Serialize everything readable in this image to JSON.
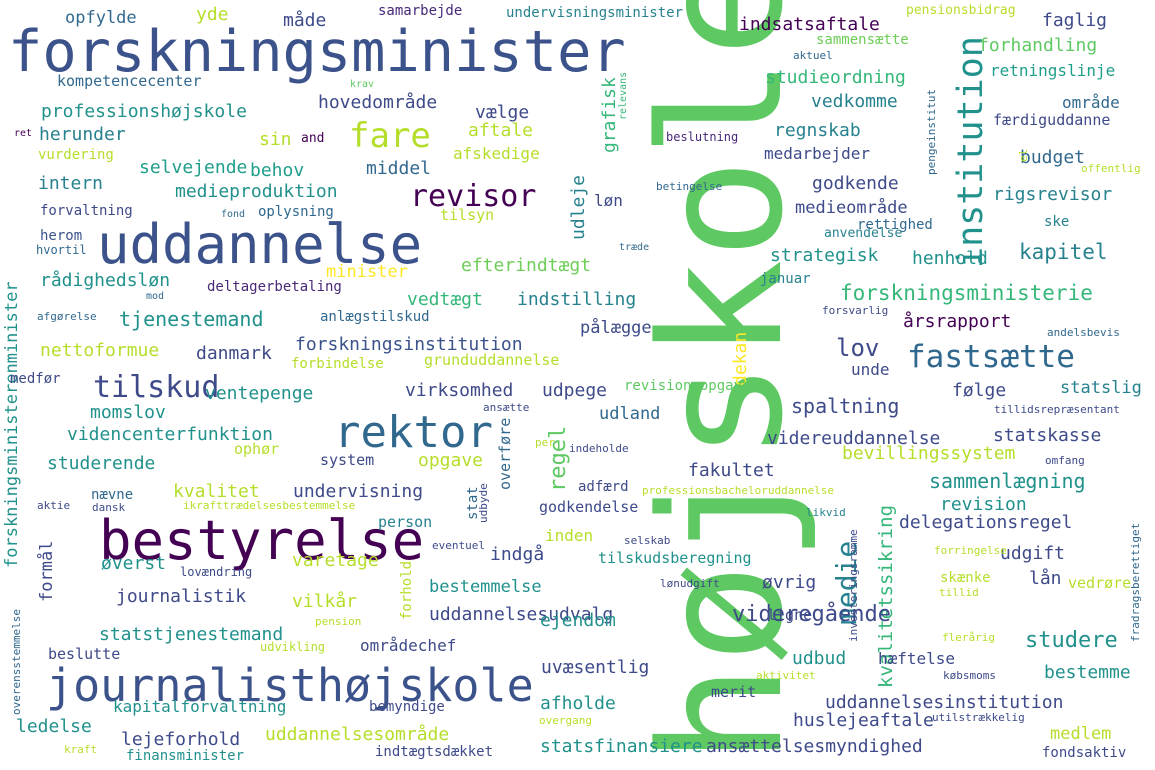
{
  "words": [
    {
      "text": "højskole",
      "color": "#5ec962"
    },
    {
      "text": "forskningsminister",
      "color": "#3b528b"
    },
    {
      "text": "uddannelse",
      "color": "#3b528b"
    },
    {
      "text": "bestyrelse",
      "color": "#440154"
    },
    {
      "text": "journalisthøjskole",
      "color": "#3b528b"
    },
    {
      "text": "rektor",
      "color": "#31688e"
    },
    {
      "text": "institution",
      "color": "#21918c"
    },
    {
      "text": "fare",
      "color": "#b5de2b"
    },
    {
      "text": "revisor",
      "color": "#440154"
    },
    {
      "text": "tilskud",
      "color": "#3e4a89"
    },
    {
      "text": "fastsætte",
      "color": "#31688e"
    },
    {
      "text": "forskningsministerenminister",
      "color": "#21918c"
    },
    {
      "text": "medie",
      "color": "#26828e"
    },
    {
      "text": "kvalitetssikring",
      "color": "#35b779"
    },
    {
      "text": "regel",
      "color": "#5ec962"
    },
    {
      "text": "opfylde",
      "color": "#31688e"
    },
    {
      "text": "yde",
      "color": "#b5de2b"
    },
    {
      "text": "måde",
      "color": "#3e4a89"
    },
    {
      "text": "samarbejde",
      "color": "#482878"
    },
    {
      "text": "undervisningsminister",
      "color": "#26828e"
    },
    {
      "text": "pensionsbidrag",
      "color": "#b5de2b"
    },
    {
      "text": "indsatsaftale",
      "color": "#440154"
    },
    {
      "text": "faglig",
      "color": "#3e4a89"
    },
    {
      "text": "sammensætte",
      "color": "#6ece58"
    },
    {
      "text": "aktuel",
      "color": "#31688e"
    },
    {
      "text": "forhandling",
      "color": "#5ec962"
    },
    {
      "text": "kompetencecenter",
      "color": "#31688e"
    },
    {
      "text": "krav",
      "color": "#5ec962"
    },
    {
      "text": "studieordning",
      "color": "#35b779"
    },
    {
      "text": "retningslinje",
      "color": "#1f9e89"
    },
    {
      "text": "relevans",
      "color": "#35b779"
    },
    {
      "text": "pengeinstitut",
      "color": "#31688e"
    },
    {
      "text": "professionshøjskole",
      "color": "#21918c"
    },
    {
      "text": "hovedområde",
      "color": "#3e4a89"
    },
    {
      "text": "vælge",
      "color": "#3e4a89"
    },
    {
      "text": "vedkomme",
      "color": "#26828e"
    },
    {
      "text": "område",
      "color": "#31688e"
    },
    {
      "text": "ret",
      "color": "#440154"
    },
    {
      "text": "herunder",
      "color": "#26828e"
    },
    {
      "text": "sin",
      "color": "#b5de2b"
    },
    {
      "text": "and",
      "color": "#440154"
    },
    {
      "text": "aftale",
      "color": "#b5de2b"
    },
    {
      "text": "grafisk",
      "color": "#35b779"
    },
    {
      "text": "beslutning",
      "color": "#482878"
    },
    {
      "text": "regnskab",
      "color": "#26828e"
    },
    {
      "text": "færdiguddanne",
      "color": "#3e4a89"
    },
    {
      "text": "vurdering",
      "color": "#b5de2b"
    },
    {
      "text": "afskedige",
      "color": "#b5de2b"
    },
    {
      "text": "medarbejder",
      "color": "#3e4a89"
    },
    {
      "text": "budget",
      "color": "#31688e"
    },
    {
      "text": "el",
      "color": "#b5de2b"
    },
    {
      "text": "offentlig",
      "color": "#b5de2b"
    },
    {
      "text": "selvejende",
      "color": "#1f9e89"
    },
    {
      "text": "behov",
      "color": "#1f9e89"
    },
    {
      "text": "middel",
      "color": "#31688e"
    },
    {
      "text": "intern",
      "color": "#26828e"
    },
    {
      "text": "medieproduktion",
      "color": "#21918c"
    },
    {
      "text": "udleje",
      "color": "#26828e"
    },
    {
      "text": "betingelse",
      "color": "#31688e"
    },
    {
      "text": "godkende",
      "color": "#3e4a89"
    },
    {
      "text": "rigsrevisor",
      "color": "#26828e"
    },
    {
      "text": "forvaltning",
      "color": "#3e4a89"
    },
    {
      "text": "fond",
      "color": "#31688e"
    },
    {
      "text": "oplysning",
      "color": "#31688e"
    },
    {
      "text": "tilsyn",
      "color": "#b5de2b"
    },
    {
      "text": "løn",
      "color": "#3e4a89"
    },
    {
      "text": "medieområde",
      "color": "#3e4a89"
    },
    {
      "text": "ske",
      "color": "#26828e"
    },
    {
      "text": "herom",
      "color": "#3b528b"
    },
    {
      "text": "hvortil",
      "color": "#31688e"
    },
    {
      "text": "anvendelse",
      "color": "#26828e"
    },
    {
      "text": "rettighed",
      "color": "#31688e"
    },
    {
      "text": "træde",
      "color": "#31688e"
    },
    {
      "text": "kapitel",
      "color": "#26828e"
    },
    {
      "text": "minister",
      "color": "#fde725"
    },
    {
      "text": "efterindtægt",
      "color": "#6ece58"
    },
    {
      "text": "strategisk",
      "color": "#21918c"
    },
    {
      "text": "henhold",
      "color": "#21918c"
    },
    {
      "text": "rådighedsløn",
      "color": "#21918c"
    },
    {
      "text": "deltagerbetaling",
      "color": "#482878"
    },
    {
      "text": "januar",
      "color": "#26828e"
    },
    {
      "text": "mod",
      "color": "#31688e"
    },
    {
      "text": "forskningsministerie",
      "color": "#35b779"
    },
    {
      "text": "vedtægt",
      "color": "#35b779"
    },
    {
      "text": "indstilling",
      "color": "#26828e"
    },
    {
      "text": "afgørelse",
      "color": "#31688e"
    },
    {
      "text": "tjenestemand",
      "color": "#21918c"
    },
    {
      "text": "anlægstilskud",
      "color": "#31688e"
    },
    {
      "text": "forsvarlig",
      "color": "#3e4a89"
    },
    {
      "text": "årsrapport",
      "color": "#440154"
    },
    {
      "text": "forskningsinstitution",
      "color": "#3b528b"
    },
    {
      "text": "pålægge",
      "color": "#3e4a89"
    },
    {
      "text": "dekan",
      "color": "#fde725"
    },
    {
      "text": "lov",
      "color": "#3e4a89"
    },
    {
      "text": "andelsbevis",
      "color": "#31688e"
    },
    {
      "text": "nettoformue",
      "color": "#b5de2b"
    },
    {
      "text": "danmark",
      "color": "#3e4a89"
    },
    {
      "text": "grunduddannelse",
      "color": "#b5de2b"
    },
    {
      "text": "medfør",
      "color": "#3e4a89"
    },
    {
      "text": "forbindelse",
      "color": "#b5de2b"
    },
    {
      "text": "unde",
      "color": "#3e4a89"
    },
    {
      "text": "ventepenge",
      "color": "#21918c"
    },
    {
      "text": "virksomhed",
      "color": "#3e4a89"
    },
    {
      "text": "udpege",
      "color": "#3e4a89"
    },
    {
      "text": "revisionsopgave",
      "color": "#5ec962"
    },
    {
      "text": "følge",
      "color": "#3e4a89"
    },
    {
      "text": "statslig",
      "color": "#26828e"
    },
    {
      "text": "momslov",
      "color": "#21918c"
    },
    {
      "text": "udland",
      "color": "#31688e"
    },
    {
      "text": "ansætte",
      "color": "#3e4a89"
    },
    {
      "text": "spaltning",
      "color": "#3e4a89"
    },
    {
      "text": "tillidsrepræsentant",
      "color": "#3e4a89"
    },
    {
      "text": "videncenterfunktion",
      "color": "#21918c"
    },
    {
      "text": "overføre",
      "color": "#31688e"
    },
    {
      "text": "per",
      "color": "#b5de2b"
    },
    {
      "text": "videreuddannelse",
      "color": "#3e4a89"
    },
    {
      "text": "statskasse",
      "color": "#3e4a89"
    },
    {
      "text": "studerende",
      "color": "#21918c"
    },
    {
      "text": "system",
      "color": "#3e4a89"
    },
    {
      "text": "opgave",
      "color": "#b5de2b"
    },
    {
      "text": "indeholde",
      "color": "#3e4a89"
    },
    {
      "text": "bevillingssystem",
      "color": "#b5de2b"
    },
    {
      "text": "omfang",
      "color": "#3e4a89"
    },
    {
      "text": "ophør",
      "color": "#b5de2b"
    },
    {
      "text": "fakultet",
      "color": "#3e4a89"
    },
    {
      "text": "sammenlægning",
      "color": "#21918c"
    },
    {
      "text": "nævne",
      "color": "#31688e"
    },
    {
      "text": "kvalitet",
      "color": "#b5de2b"
    },
    {
      "text": "undervisning",
      "color": "#3e4a89"
    },
    {
      "text": "adfærd",
      "color": "#3e4a89"
    },
    {
      "text": "revision",
      "color": "#21918c"
    },
    {
      "text": "aktie",
      "color": "#3e4a89"
    },
    {
      "text": "dansk",
      "color": "#3e4a89"
    },
    {
      "text": "ikrafttrædelsesbestemmelse",
      "color": "#b5de2b"
    },
    {
      "text": "professionsbacheloruddannelse",
      "color": "#b5de2b"
    },
    {
      "text": "godkendelse",
      "color": "#3e4a89"
    },
    {
      "text": "likvid",
      "color": "#26828e"
    },
    {
      "text": "fradragsberettiget",
      "color": "#31688e"
    },
    {
      "text": "stat",
      "color": "#31688e"
    },
    {
      "text": "udbyde",
      "color": "#3e4a89"
    },
    {
      "text": "person",
      "color": "#26828e"
    },
    {
      "text": "delegationsregel",
      "color": "#3e4a89"
    },
    {
      "text": "formål",
      "color": "#3e4a89"
    },
    {
      "text": "inden",
      "color": "#b5de2b"
    },
    {
      "text": "eventuel",
      "color": "#3e4a89"
    },
    {
      "text": "selskab",
      "color": "#3e4a89"
    },
    {
      "text": "indgå",
      "color": "#3e4a89"
    },
    {
      "text": "udgift",
      "color": "#3e4a89"
    },
    {
      "text": "øverst",
      "color": "#21918c"
    },
    {
      "text": "varetage",
      "color": "#b5de2b"
    },
    {
      "text": "tilskudsberegning",
      "color": "#21918c"
    },
    {
      "text": "forringelse",
      "color": "#b5de2b"
    },
    {
      "text": "lovændring",
      "color": "#3e4a89"
    },
    {
      "text": "forhold",
      "color": "#b5de2b"
    },
    {
      "text": "investeringsramme",
      "color": "#3e4a89"
    },
    {
      "text": "skænke",
      "color": "#b5de2b"
    },
    {
      "text": "lån",
      "color": "#3e4a89"
    },
    {
      "text": "vedrøre",
      "color": "#b5de2b"
    },
    {
      "text": "bestemmelse",
      "color": "#21918c"
    },
    {
      "text": "lønudgift",
      "color": "#3e4a89"
    },
    {
      "text": "øvrig",
      "color": "#3e4a89"
    },
    {
      "text": "tillid",
      "color": "#b5de2b"
    },
    {
      "text": "journalistik",
      "color": "#3e4a89"
    },
    {
      "text": "vilkår",
      "color": "#b5de2b"
    },
    {
      "text": "videregående",
      "color": "#3e4a89"
    },
    {
      "text": "overensstemmelse",
      "color": "#31688e"
    },
    {
      "text": "pension",
      "color": "#b5de2b"
    },
    {
      "text": "uddannelsesudvalg",
      "color": "#3e4a89"
    },
    {
      "text": "ligne",
      "color": "#3e4a89"
    },
    {
      "text": "flerårig",
      "color": "#b5de2b"
    },
    {
      "text": "statstjenestemand",
      "color": "#21918c"
    },
    {
      "text": "ejendom",
      "color": "#21918c"
    },
    {
      "text": "studere",
      "color": "#21918c"
    },
    {
      "text": "beslutte",
      "color": "#3e4a89"
    },
    {
      "text": "udvikling",
      "color": "#b5de2b"
    },
    {
      "text": "områdechef",
      "color": "#3e4a89"
    },
    {
      "text": "udbud",
      "color": "#21918c"
    },
    {
      "text": "hæftelse",
      "color": "#3e4a89"
    },
    {
      "text": "købsmoms",
      "color": "#3e4a89"
    },
    {
      "text": "bestemme",
      "color": "#21918c"
    },
    {
      "text": "uvæsentlig",
      "color": "#3e4a89"
    },
    {
      "text": "aktivitet",
      "color": "#b5de2b"
    },
    {
      "text": "afholde",
      "color": "#21918c"
    },
    {
      "text": "merit",
      "color": "#3e4a89"
    },
    {
      "text": "uddannelsesinstitution",
      "color": "#3e4a89"
    },
    {
      "text": "kapitalforvaltning",
      "color": "#21918c"
    },
    {
      "text": "bemyndige",
      "color": "#3e4a89"
    },
    {
      "text": "overgang",
      "color": "#b5de2b"
    },
    {
      "text": "huslejeaftale",
      "color": "#3e4a89"
    },
    {
      "text": "utilstrækkelig",
      "color": "#3e4a89"
    },
    {
      "text": "ledelse",
      "color": "#21918c"
    },
    {
      "text": "lejeforhold",
      "color": "#3e4a89"
    },
    {
      "text": "uddannelsesområde",
      "color": "#b5de2b"
    },
    {
      "text": "medlem",
      "color": "#b5de2b"
    },
    {
      "text": "statsfinansiere",
      "color": "#21918c"
    },
    {
      "text": "ansættelsesmyndighed",
      "color": "#3e4a89"
    },
    {
      "text": "kraft",
      "color": "#b5de2b"
    },
    {
      "text": "finansminister",
      "color": "#21918c"
    },
    {
      "text": "indtægtsdækket",
      "color": "#3e4a89"
    },
    {
      "text": "fondsaktiv",
      "color": "#3e4a89"
    }
  ]
}
